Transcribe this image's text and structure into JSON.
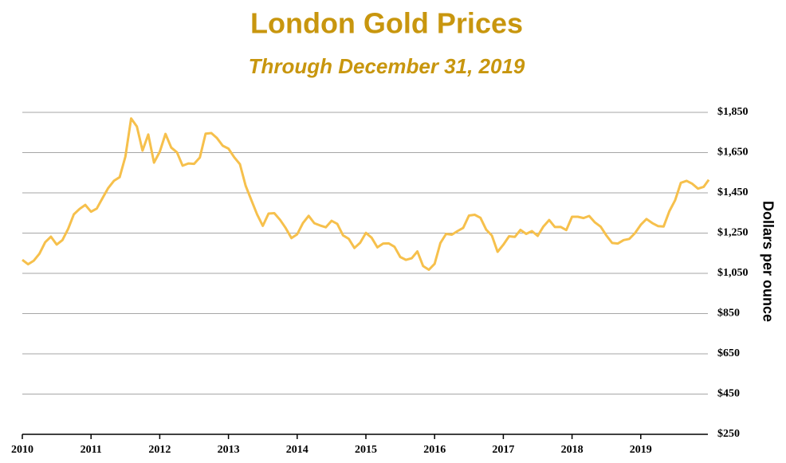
{
  "chart_data": {
    "type": "line",
    "title": "London Gold Prices",
    "subtitle": "Through December 31, 2019",
    "y_label": "Dollars per ounce",
    "x": [
      2010,
      2010.083,
      2010.167,
      2010.25,
      2010.333,
      2010.417,
      2010.5,
      2010.583,
      2010.667,
      2010.75,
      2010.833,
      2010.917,
      2011,
      2011.083,
      2011.167,
      2011.25,
      2011.333,
      2011.417,
      2011.5,
      2011.583,
      2011.667,
      2011.75,
      2011.833,
      2011.917,
      2012,
      2012.083,
      2012.167,
      2012.25,
      2012.333,
      2012.417,
      2012.5,
      2012.583,
      2012.667,
      2012.75,
      2012.833,
      2012.917,
      2013,
      2013.083,
      2013.167,
      2013.25,
      2013.333,
      2013.417,
      2013.5,
      2013.583,
      2013.667,
      2013.75,
      2013.833,
      2013.917,
      2014,
      2014.083,
      2014.167,
      2014.25,
      2014.333,
      2014.417,
      2014.5,
      2014.583,
      2014.667,
      2014.75,
      2014.833,
      2014.917,
      2015,
      2015.083,
      2015.167,
      2015.25,
      2015.333,
      2015.417,
      2015.5,
      2015.583,
      2015.667,
      2015.75,
      2015.833,
      2015.917,
      2016,
      2016.083,
      2016.167,
      2016.25,
      2016.333,
      2016.417,
      2016.5,
      2016.583,
      2016.667,
      2016.75,
      2016.833,
      2016.917,
      2017,
      2017.083,
      2017.167,
      2017.25,
      2017.333,
      2017.417,
      2017.5,
      2017.583,
      2017.667,
      2017.75,
      2017.833,
      2017.917,
      2018,
      2018.083,
      2018.167,
      2018.25,
      2018.333,
      2018.417,
      2018.5,
      2018.583,
      2018.667,
      2018.75,
      2018.833,
      2018.917,
      2019,
      2019.083,
      2019.167,
      2019.25,
      2019.333,
      2019.417,
      2019.5,
      2019.583,
      2019.667,
      2019.75,
      2019.833,
      2019.917,
      2019.99
    ],
    "series": [
      {
        "name": "London gold price",
        "color": "#f6c04c",
        "values": [
          1117,
          1095,
          1113,
          1148,
          1205,
          1232,
          1193,
          1215,
          1271,
          1343,
          1370,
          1390,
          1356,
          1372,
          1424,
          1474,
          1510,
          1528,
          1630,
          1820,
          1780,
          1660,
          1740,
          1600,
          1654,
          1743,
          1675,
          1651,
          1585,
          1596,
          1594,
          1626,
          1744,
          1747,
          1722,
          1684,
          1670,
          1627,
          1592,
          1485,
          1414,
          1343,
          1286,
          1347,
          1349,
          1316,
          1275,
          1225,
          1244,
          1300,
          1336,
          1299,
          1288,
          1279,
          1311,
          1296,
          1239,
          1222,
          1176,
          1202,
          1251,
          1227,
          1179,
          1198,
          1199,
          1182,
          1131,
          1117,
          1125,
          1159,
          1086,
          1068,
          1097,
          1200,
          1246,
          1242,
          1260,
          1276,
          1337,
          1341,
          1326,
          1267,
          1238,
          1157,
          1192,
          1234,
          1231,
          1266,
          1246,
          1260,
          1236,
          1283,
          1315,
          1280,
          1281,
          1265,
          1331,
          1331,
          1325,
          1335,
          1303,
          1282,
          1238,
          1201,
          1198,
          1215,
          1221,
          1250,
          1291,
          1320,
          1300,
          1285,
          1283,
          1359,
          1413,
          1500,
          1510,
          1495,
          1471,
          1480,
          1515
        ]
      }
    ],
    "xlim": [
      2010,
      2020
    ],
    "xticks": [
      2010,
      2011,
      2012,
      2013,
      2014,
      2015,
      2016,
      2017,
      2018,
      2019
    ],
    "ylim": [
      250,
      1850
    ],
    "yticks": [
      {
        "value": 250,
        "label": "$250"
      },
      {
        "value": 450,
        "label": "$450"
      },
      {
        "value": 650,
        "label": "$650"
      },
      {
        "value": 850,
        "label": "$850"
      },
      {
        "value": 1050,
        "label": "$1,050"
      },
      {
        "value": 1250,
        "label": "$1,250"
      },
      {
        "value": 1450,
        "label": "$1,450"
      },
      {
        "value": 1650,
        "label": "$1,650"
      },
      {
        "value": 1850,
        "label": "$1,850"
      }
    ],
    "grid": true
  }
}
